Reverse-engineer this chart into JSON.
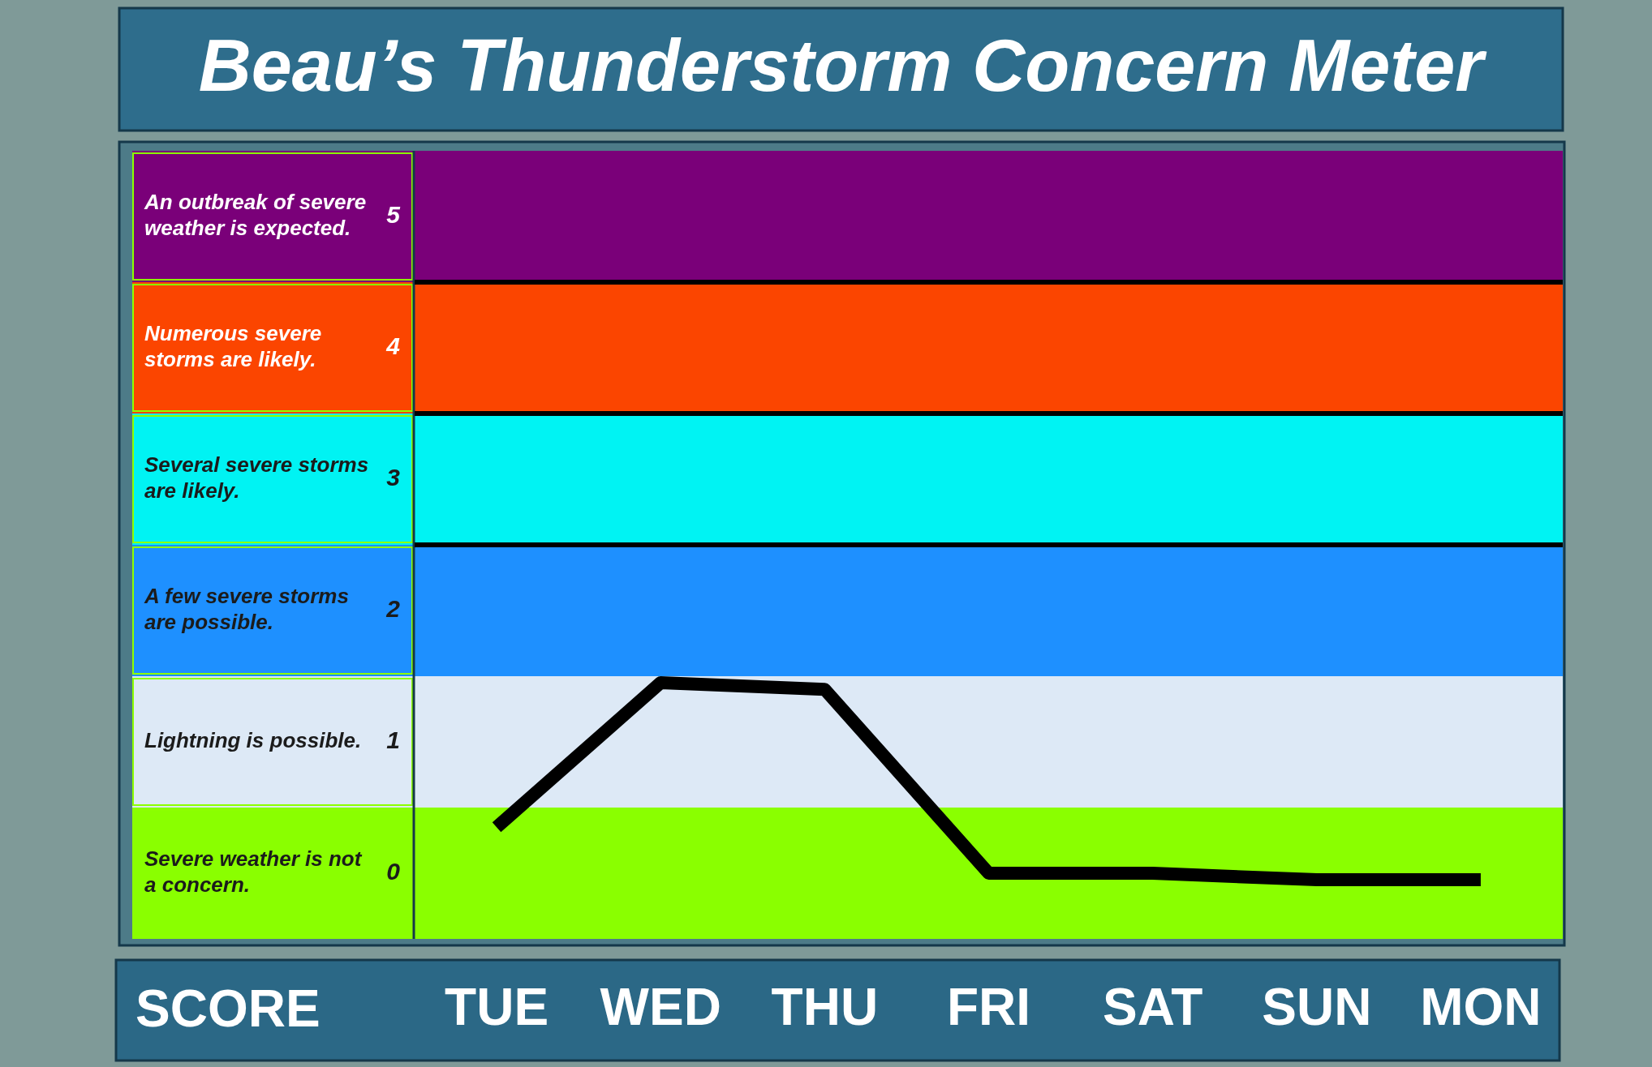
{
  "chart_data": {
    "type": "line",
    "title": "Beau’s Thunderstorm Concern Meter",
    "ylabel": "SCORE",
    "categories": [
      "TUE",
      "WED",
      "THU",
      "FRI",
      "SAT",
      "SUN",
      "MON"
    ],
    "ylim": [
      -0.5,
      5.5
    ],
    "yticks": [
      0,
      1,
      2,
      3,
      4,
      5
    ],
    "series": [
      {
        "color": "#000000",
        "values": [
          0.35,
          1.45,
          1.4,
          0,
          0,
          -0.05,
          -0.05
        ]
      }
    ],
    "bands": [
      {
        "axis": "y",
        "from": -0.5,
        "to": 0.5,
        "label": "Severe weather is not a concern.",
        "color": "#8aff00"
      },
      {
        "axis": "y",
        "from": 0.5,
        "to": 1.5,
        "label": "Lightning is possible.",
        "color": "#dde9f6"
      },
      {
        "axis": "y",
        "from": 1.5,
        "to": 2.5,
        "label": "A few severe storms are possible.",
        "color": "#1e90ff"
      },
      {
        "axis": "y",
        "from": 2.5,
        "to": 3.5,
        "label": "Several severe storms are likely.",
        "color": "#00f3f3"
      },
      {
        "axis": "y",
        "from": 3.5,
        "to": 4.5,
        "label": "Numerous severe storms are likely.",
        "color": "#fb4500"
      },
      {
        "axis": "y",
        "from": 4.5,
        "to": 5.5,
        "label": "An outbreak of severe weather is expected.",
        "color": "#7a0079"
      }
    ],
    "ref_lines": [
      {
        "axis": "y",
        "value": 2.5,
        "color": "#000000"
      },
      {
        "axis": "y",
        "value": 3.5,
        "color": "#000000"
      },
      {
        "axis": "y",
        "value": 4.5,
        "color": "#000000"
      }
    ],
    "legend": false
  }
}
